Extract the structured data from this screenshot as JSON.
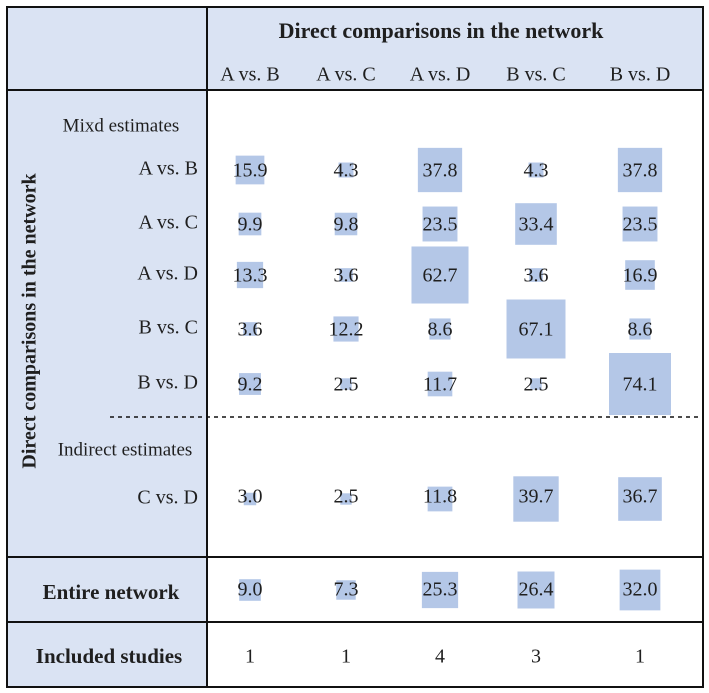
{
  "chart_data": {
    "type": "heatmap",
    "title": "",
    "top_header": "Direct comparisons in the network",
    "columns": [
      "A vs. B",
      "A vs. C",
      "A vs. D",
      "B vs. C",
      "B vs. D"
    ],
    "left_header": "Direct comparisons in the network",
    "mixed_label": "Mixd estimates",
    "indirect_label": "Indirect estimates",
    "mixed_rows": [
      "A vs. B",
      "A vs. C",
      "A vs. D",
      "B vs. C",
      "B vs. D"
    ],
    "indirect_rows": [
      "C vs. D"
    ],
    "values": [
      [
        15.9,
        4.3,
        37.8,
        4.3,
        37.8
      ],
      [
        9.9,
        9.8,
        23.5,
        33.4,
        23.5
      ],
      [
        13.3,
        3.6,
        62.7,
        3.6,
        16.9
      ],
      [
        3.6,
        12.2,
        8.6,
        67.1,
        8.6
      ],
      [
        9.2,
        2.5,
        11.7,
        2.5,
        74.1
      ],
      [
        3.0,
        2.5,
        11.8,
        39.7,
        36.7
      ]
    ],
    "entire_network_label": "Entire network",
    "entire_network": [
      9.0,
      7.3,
      25.3,
      26.4,
      32.0
    ],
    "included_studies_label": "Included studies",
    "included_studies": [
      1,
      1,
      4,
      3,
      1
    ],
    "colors": {
      "header_bg": "#dae3f3",
      "cell_box": "#b4c7e7",
      "border": "#111111",
      "text": "#1f1f1f"
    }
  }
}
